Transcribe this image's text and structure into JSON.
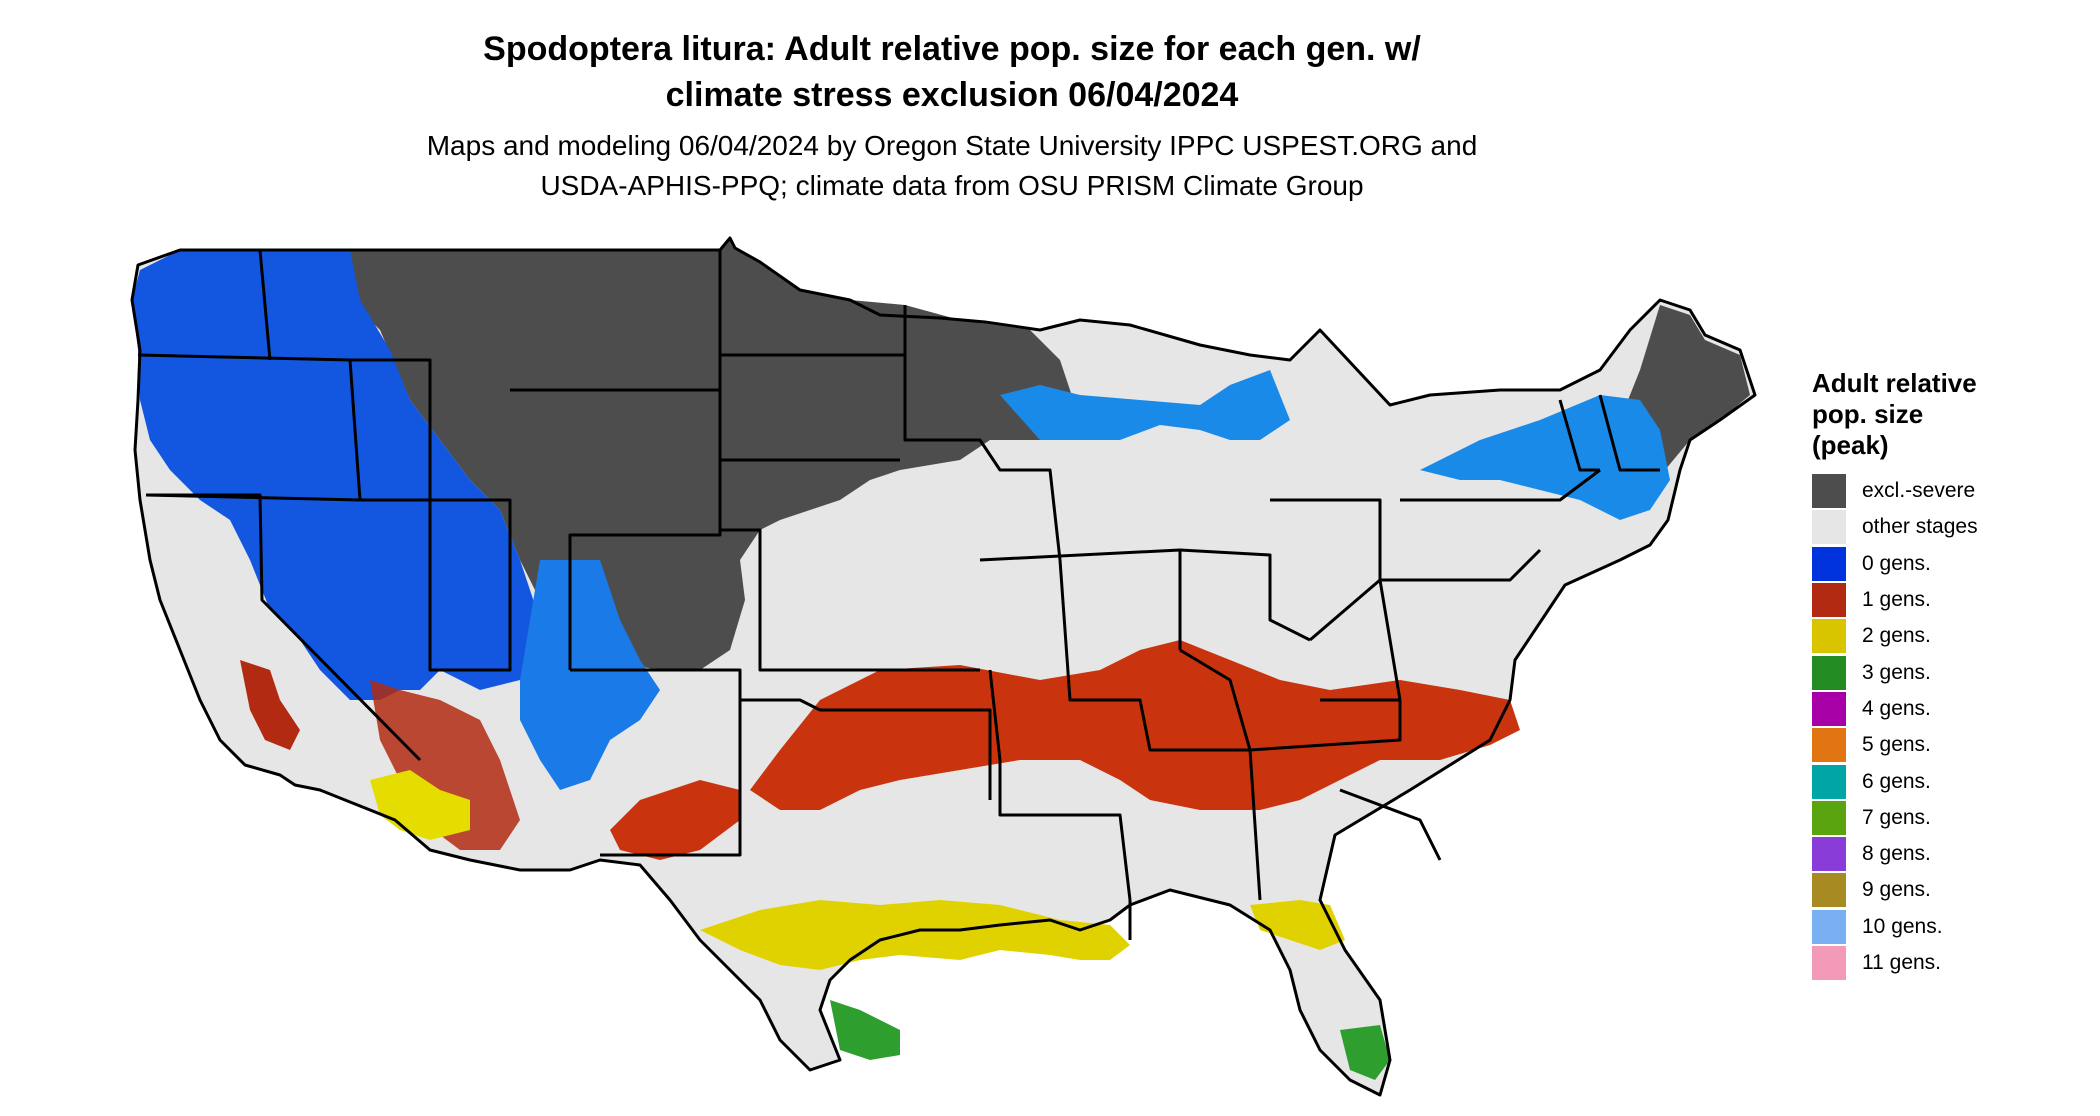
{
  "title": {
    "line1": "Spodoptera litura: Adult relative pop. size for each gen. w/",
    "line2": "climate stress exclusion 06/04/2024"
  },
  "subtitle": {
    "line1": "Maps and modeling 06/04/2024 by Oregon State University IPPC USPEST.ORG and",
    "line2": "USDA-APHIS-PPQ; climate data from OSU PRISM Climate Group"
  },
  "legend": {
    "title_lines": [
      "Adult relative",
      "pop. size",
      "(peak)"
    ],
    "items": [
      {
        "label": "excl.-severe",
        "color": "#4d4d4d"
      },
      {
        "label": "other stages",
        "color": "#e6e6e6"
      },
      {
        "label": "0 gens.",
        "color": "#0033dd"
      },
      {
        "label": "1 gens.",
        "color": "#b22a12"
      },
      {
        "label": "2 gens.",
        "color": "#d9c400"
      },
      {
        "label": "3 gens.",
        "color": "#228b22"
      },
      {
        "label": "4 gens.",
        "color": "#a600a6"
      },
      {
        "label": "5 gens.",
        "color": "#e07512"
      },
      {
        "label": "6 gens.",
        "color": "#00a6a6"
      },
      {
        "label": "7 gens.",
        "color": "#5aa50f"
      },
      {
        "label": "8 gens.",
        "color": "#8a3cd8"
      },
      {
        "label": "9 gens.",
        "color": "#a88a22"
      },
      {
        "label": "10 gens.",
        "color": "#78b0f2"
      },
      {
        "label": "11 gens.",
        "color": "#f29ab8"
      }
    ]
  }
}
